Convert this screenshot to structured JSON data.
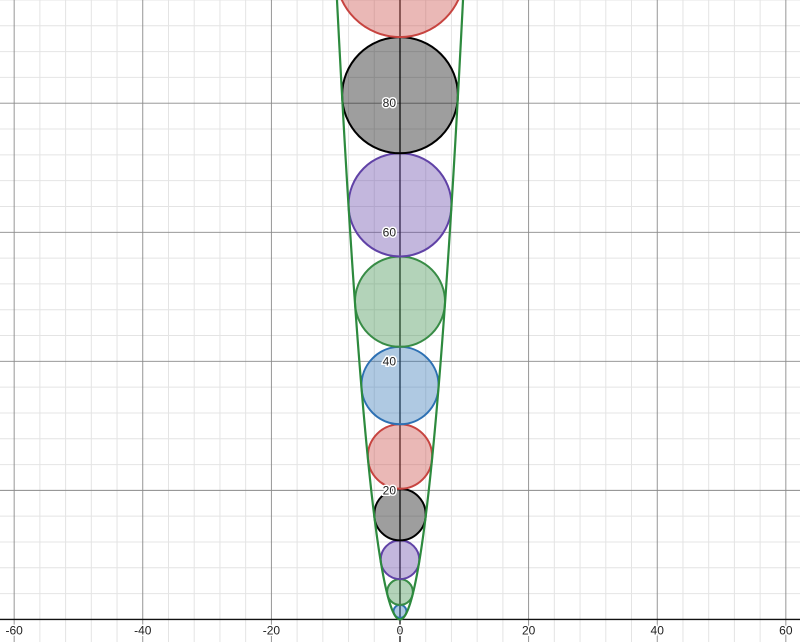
{
  "chart_data": {
    "type": "circle_packing_graph",
    "title": "",
    "xlabel": "",
    "ylabel": "",
    "xlim": [
      -62.2,
      62.2
    ],
    "ylim": [
      -3.5,
      96.0
    ],
    "grid": true,
    "x_ticks": [
      -60,
      -40,
      -20,
      0,
      20,
      40,
      60
    ],
    "x_tick_labels": [
      "-60",
      "-40",
      "-20",
      "0",
      "20",
      "40",
      "60"
    ],
    "y_ticks": [
      20,
      40,
      60,
      80
    ],
    "y_tick_labels": [
      "20",
      "40",
      "60",
      "80"
    ],
    "curve": {
      "name": "parabola",
      "equation": "y = x^2",
      "color": "#2d8a3e"
    },
    "circles": [
      {
        "center": [
          0,
          1.25
        ],
        "radius": 1.0,
        "color": "#2d70b3"
      },
      {
        "center": [
          0,
          4.25
        ],
        "radius": 2.0,
        "color": "#388c46"
      },
      {
        "center": [
          0,
          9.25
        ],
        "radius": 3.0,
        "color": "#6042a6"
      },
      {
        "center": [
          0,
          16.25
        ],
        "radius": 4.0,
        "color": "#000000"
      },
      {
        "center": [
          0,
          25.25
        ],
        "radius": 5.0,
        "color": "#c74440"
      },
      {
        "center": [
          0,
          36.25
        ],
        "radius": 6.0,
        "color": "#2d70b3"
      },
      {
        "center": [
          0,
          49.25
        ],
        "radius": 7.0,
        "color": "#388c46"
      },
      {
        "center": [
          0,
          64.25
        ],
        "radius": 8.0,
        "color": "#6042a6"
      },
      {
        "center": [
          0,
          81.25
        ],
        "radius": 9.0,
        "color": "#000000"
      },
      {
        "center": [
          0,
          100.25
        ],
        "radius": 10.0,
        "color": "#c74440"
      }
    ]
  }
}
